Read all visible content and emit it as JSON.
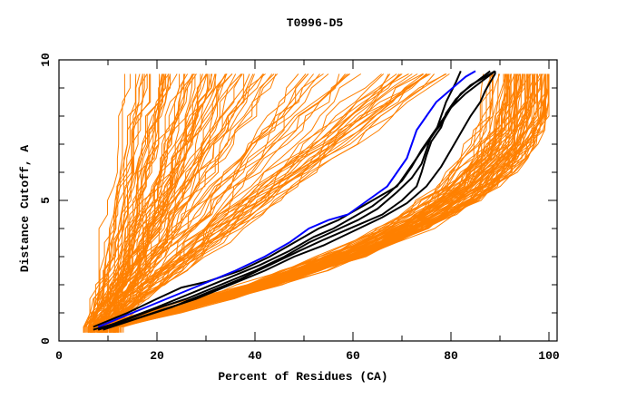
{
  "chart_data": {
    "type": "line",
    "title": "T0996-D5",
    "xlabel": "Percent of Residues (CA)",
    "ylabel": "Distance Cutoff, A",
    "xlim": [
      0,
      100
    ],
    "ylim": [
      0,
      10
    ],
    "x_ticks": [
      0,
      20,
      40,
      60,
      80,
      100
    ],
    "y_ticks": [
      0,
      5,
      10
    ],
    "x_minor_step": 10,
    "y_minor_step": 1,
    "grid": false,
    "legend": "none",
    "colors": {
      "background_models": "#ff8000",
      "highlight_blue": "#0000ff",
      "highlight_black": "#000000",
      "axes": "#000000"
    },
    "y_cutoffs": [
      0.5,
      1,
      1.5,
      2,
      2.5,
      3,
      3.5,
      4,
      4.5,
      5,
      5.5,
      6,
      6.5,
      7,
      7.5,
      8,
      8.5,
      9,
      9.5
    ],
    "series": [
      {
        "name": "blue-model",
        "color": "#0000ff",
        "x": [
          8,
          15,
          22,
          29,
          36,
          42,
          47,
          51,
          55,
          59,
          63,
          67,
          69,
          71,
          72,
          73,
          75,
          77,
          79,
          81,
          83,
          85
        ],
        "y": [
          0.5,
          1,
          1.5,
          2,
          2.5,
          3,
          3.5,
          4,
          4.3,
          4.5,
          5,
          5.5,
          6,
          6.5,
          7,
          7.5,
          8,
          8.5,
          8.8,
          9.1,
          9.4,
          9.6
        ]
      },
      {
        "name": "black-model-1",
        "color": "#000000",
        "x": [
          7,
          14,
          20,
          25,
          30,
          37,
          43,
          48,
          53,
          57,
          60,
          63,
          66,
          69,
          71,
          73,
          75,
          77,
          79,
          81,
          82
        ],
        "y": [
          0.5,
          1,
          1.5,
          1.9,
          2.1,
          2.5,
          3,
          3.5,
          4,
          4.3,
          4.6,
          4.9,
          5.2,
          5.5,
          6,
          6.5,
          7,
          7.5,
          8.5,
          9.2,
          9.6
        ]
      },
      {
        "name": "black-model-2",
        "color": "#000000",
        "x": [
          8,
          14,
          20,
          27,
          34,
          41,
          47,
          52,
          56,
          60,
          64,
          67,
          70,
          72,
          74,
          76,
          78,
          80,
          82,
          85,
          88
        ],
        "y": [
          0.4,
          0.8,
          1.2,
          1.7,
          2.2,
          2.7,
          3.2,
          3.7,
          4,
          4.4,
          4.8,
          5.2,
          5.7,
          6.2,
          6.8,
          7.3,
          7.7,
          8.3,
          8.8,
          9.2,
          9.6
        ]
      },
      {
        "name": "black-model-3",
        "color": "#000000",
        "x": [
          7,
          13,
          19,
          26,
          33,
          40,
          46,
          51,
          56,
          61,
          65,
          69,
          72,
          74,
          75,
          76,
          78,
          80,
          83,
          86,
          89
        ],
        "y": [
          0.4,
          0.7,
          1.1,
          1.5,
          2,
          2.5,
          3,
          3.5,
          3.9,
          4.3,
          4.7,
          5.3,
          5.8,
          6.3,
          6.8,
          7.3,
          7.8,
          8.3,
          8.8,
          9.2,
          9.6
        ]
      },
      {
        "name": "black-model-4",
        "color": "#000000",
        "x": [
          9,
          16,
          23,
          30,
          37,
          43,
          49,
          54,
          58,
          62,
          66,
          70,
          73,
          74,
          75,
          76,
          78,
          79,
          81,
          84,
          89
        ],
        "y": [
          0.4,
          0.8,
          1.2,
          1.7,
          2.2,
          2.7,
          3.2,
          3.6,
          3.9,
          4.2,
          4.5,
          5,
          5.5,
          6,
          6.6,
          7.1,
          7.6,
          8.1,
          8.6,
          9.1,
          9.6
        ]
      },
      {
        "name": "black-model-5",
        "color": "#000000",
        "x": [
          8,
          14,
          21,
          28,
          35,
          42,
          48,
          54,
          60,
          66,
          71,
          75,
          78,
          80,
          82,
          84,
          86,
          87,
          88,
          89,
          89
        ],
        "y": [
          0.4,
          0.7,
          1.1,
          1.5,
          2,
          2.5,
          3,
          3.4,
          3.9,
          4.4,
          4.9,
          5.5,
          6.2,
          6.8,
          7.4,
          8,
          8.5,
          8.9,
          9.2,
          9.5,
          9.6
        ]
      }
    ],
    "background_groups": [
      {
        "name": "steep-left-models",
        "count": 60,
        "x_start_range": [
          5,
          10
        ],
        "x_end_range": [
          13,
          42
        ],
        "shape": "steep"
      },
      {
        "name": "diagonal-models",
        "count": 45,
        "x_start_range": [
          6,
          12
        ],
        "x_end_range": [
          40,
          80
        ],
        "shape": "linear"
      },
      {
        "name": "right-models",
        "count": 80,
        "x_start_range": [
          6,
          12
        ],
        "x_end_range": [
          85,
          100
        ],
        "shape": "convex"
      }
    ]
  }
}
